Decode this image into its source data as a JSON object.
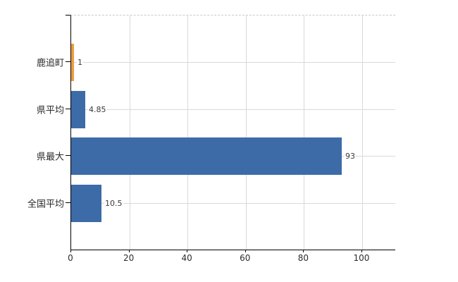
{
  "chart_data": {
    "type": "bar",
    "orientation": "horizontal",
    "title": "",
    "xlabel": "",
    "ylabel": "",
    "categories": [
      "鹿追町",
      "県平均",
      "県最大",
      "全国平均"
    ],
    "values": [
      1,
      4.85,
      93,
      10.5
    ],
    "value_labels": [
      "1",
      "4.85",
      "93",
      "10.5"
    ],
    "bar_colors": [
      "#EE9C3D",
      "#3D6BA8",
      "#3D6BA8",
      "#3D6BA8"
    ],
    "xlim": [
      0,
      111.4
    ],
    "x_ticks": [
      0,
      20,
      40,
      60,
      80,
      100
    ],
    "x_tick_labels": [
      "0",
      "20",
      "40",
      "60",
      "80",
      "100"
    ],
    "grid": true,
    "legend": false
  },
  "colors": {
    "bar_blue": "#3D6BA8",
    "bar_orange": "#EE9C3D",
    "gridline": "#D9D9D9",
    "top_border": "#C9C9C9",
    "axis": "#000000",
    "text": "#2B2B2B",
    "background": "#FFFFFF"
  }
}
